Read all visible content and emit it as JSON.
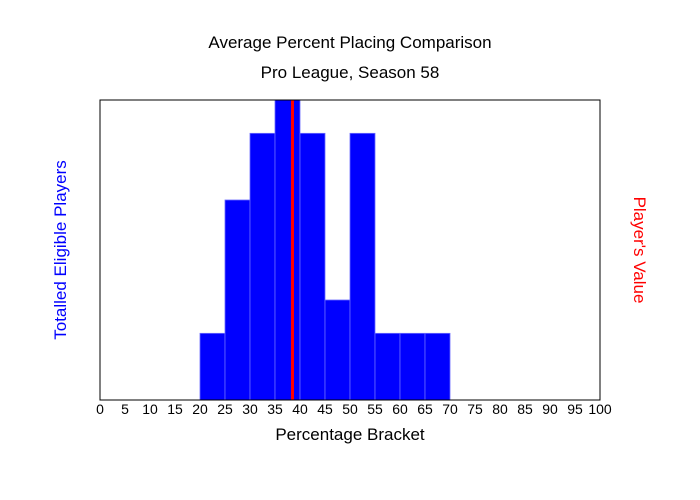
{
  "chart_data": {
    "type": "bar",
    "title": "Average Percent Placing Comparison",
    "subtitle": "Pro League, Season 58",
    "xlabel": "Percentage Bracket",
    "ylabel": "Totalled Eligible Players",
    "y2label": "Player's Value",
    "xlim": [
      0,
      100
    ],
    "ylim": [
      0,
      9
    ],
    "bin_width": 5,
    "x_ticks": [
      "0",
      "5",
      "10",
      "15",
      "20",
      "25",
      "30",
      "35",
      "40",
      "45",
      "50",
      "55",
      "60",
      "65",
      "70",
      "75",
      "80",
      "85",
      "90",
      "95",
      "100"
    ],
    "bins": [
      20,
      25,
      30,
      35,
      40,
      45,
      50,
      55,
      60,
      65
    ],
    "values": [
      2,
      6,
      8,
      9,
      8,
      3,
      8,
      2,
      2,
      2
    ],
    "player_value": 38.5,
    "bar_color": "#0000ff",
    "player_line_color": "#ff0000"
  }
}
